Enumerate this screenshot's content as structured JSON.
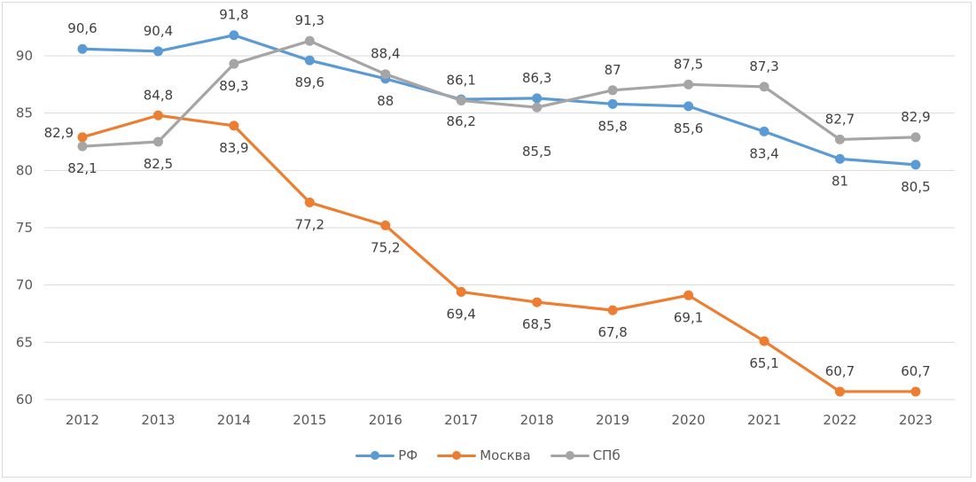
{
  "chart_data": {
    "type": "line",
    "title": "",
    "xlabel": "",
    "ylabel": "",
    "categories": [
      "2012",
      "2013",
      "2014",
      "2015",
      "2016",
      "2017",
      "2018",
      "2019",
      "2020",
      "2021",
      "2022",
      "2023"
    ],
    "ylim": [
      60,
      90
    ],
    "yticks": [
      60,
      65,
      70,
      75,
      80,
      85,
      90
    ],
    "ytick_labels": [
      "60",
      "65",
      "70",
      "75",
      "80",
      "85",
      "90"
    ],
    "grid": true,
    "legend_position": "bottom",
    "series": [
      {
        "name": "РФ",
        "color": "#5b9bd5",
        "values": [
          90.6,
          90.4,
          91.8,
          89.6,
          88,
          86.2,
          86.3,
          85.8,
          85.6,
          83.4,
          81,
          80.5
        ],
        "labels": [
          "90,6",
          "90,4",
          "91,8",
          "89,6",
          "88",
          "86,2",
          "86,3",
          "85,8",
          "85,6",
          "83,4",
          "81",
          "80,5"
        ],
        "label_pos": [
          "above",
          "above",
          "above",
          "below",
          "below",
          "below",
          "above",
          "below",
          "below",
          "below",
          "below",
          "below"
        ]
      },
      {
        "name": "Москва",
        "color": "#ed7d31",
        "values": [
          82.9,
          84.8,
          83.9,
          77.2,
          75.2,
          69.4,
          68.5,
          67.8,
          69.1,
          65.1,
          60.7,
          60.7
        ],
        "labels": [
          "82,9",
          "84,8",
          "83,9",
          "77,2",
          "75,2",
          "69,4",
          "68,5",
          "67,8",
          "69,1",
          "65,1",
          "60,7",
          "60,7"
        ],
        "label_pos": [
          "left",
          "above",
          "below",
          "below",
          "below",
          "below",
          "below",
          "below",
          "below",
          "below",
          "above",
          "above"
        ]
      },
      {
        "name": "СПб",
        "color": "#a5a5a5",
        "values": [
          82.1,
          82.5,
          89.3,
          91.3,
          88.4,
          86.1,
          85.5,
          87,
          87.5,
          87.3,
          82.7,
          82.9
        ],
        "labels": [
          "82,1",
          "82,5",
          "89,3",
          "91,3",
          "88,4",
          "86,1",
          "85,5",
          "87",
          "87,5",
          "87,3",
          "82,7",
          "82,9"
        ],
        "label_pos": [
          "below",
          "below",
          "below",
          "above",
          "above",
          "above",
          "below2",
          "above",
          "above",
          "above",
          "above",
          "above"
        ]
      }
    ]
  }
}
